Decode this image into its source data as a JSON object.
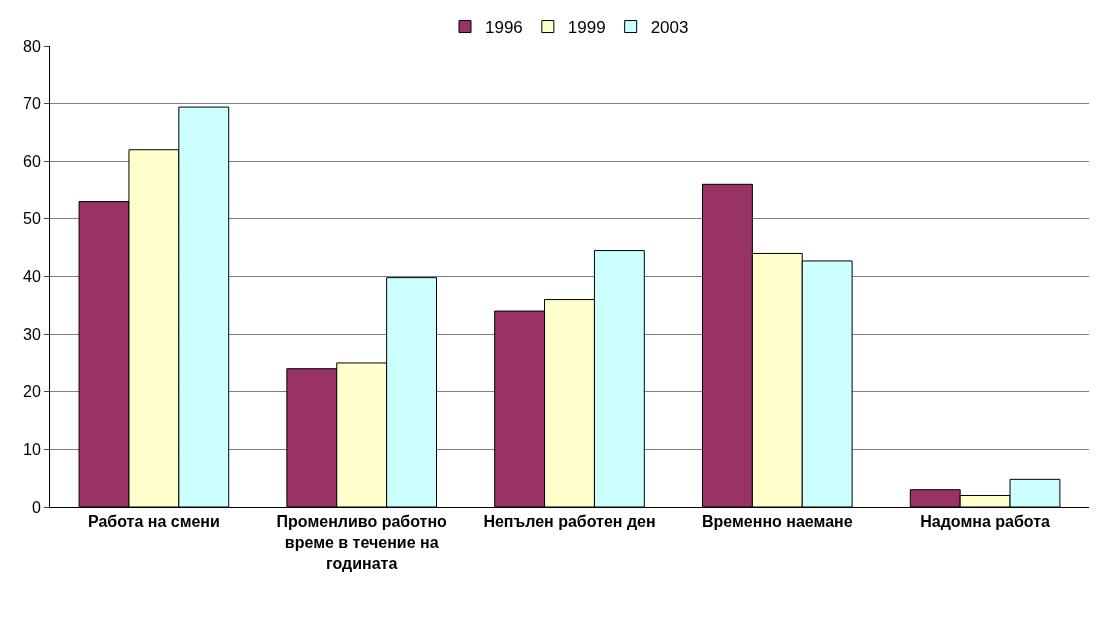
{
  "chart_data": {
    "type": "bar",
    "categories": [
      "Работа на смени",
      "Променливо работно време в течение на годината",
      "Непълен работен ден",
      "Временно наемане",
      "Надомна работа"
    ],
    "series": [
      {
        "name": "1996",
        "color": "#993366",
        "values": [
          53,
          24,
          34,
          56,
          3
        ]
      },
      {
        "name": "1999",
        "color": "#ffffcc",
        "values": [
          62,
          25,
          36,
          44,
          2
        ]
      },
      {
        "name": "2003",
        "color": "#ccffff",
        "values": [
          69.4,
          39.8,
          44.5,
          42.7,
          4.8
        ]
      }
    ],
    "ylim": [
      0,
      80
    ],
    "yticks": [
      0,
      10,
      20,
      30,
      40,
      50,
      60,
      70,
      80
    ],
    "grid": "y",
    "legend": "top"
  }
}
